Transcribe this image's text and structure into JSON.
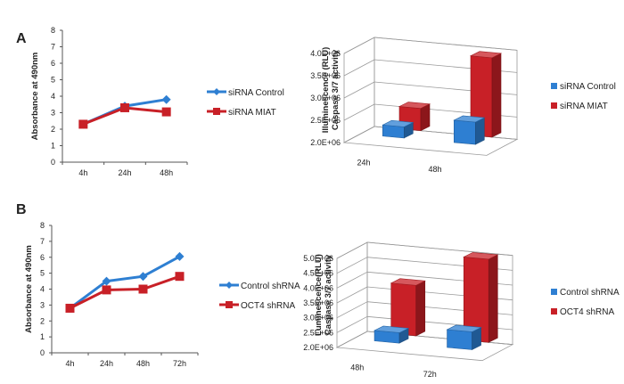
{
  "panels": {
    "a": "A",
    "b": "B"
  },
  "colors": {
    "blue": "#2e7fd2",
    "red": "#c82027"
  },
  "chart_data": [
    {
      "type": "line",
      "title": "",
      "xlabel": "",
      "ylabel": "Absorbance at 490nm",
      "categories": [
        "4h",
        "24h",
        "48h"
      ],
      "yticks": [
        "0",
        "1",
        "2",
        "3",
        "4",
        "5",
        "6",
        "7",
        "8"
      ],
      "ylim": [
        0,
        8
      ],
      "grid": false,
      "legend": "right",
      "series": [
        {
          "name": "siRNA Control",
          "values": [
            2.3,
            3.4,
            3.8
          ],
          "marker": "diamond"
        },
        {
          "name": "siRNA MIAT",
          "values": [
            2.3,
            3.3,
            3.05
          ],
          "marker": "square"
        }
      ]
    },
    {
      "type": "bar",
      "title": "",
      "xlabel": "",
      "ylabel": "Illuminescence (RLU)",
      "ylabel2": "Caspase 3/7 activity",
      "categories": [
        "24h",
        "48h"
      ],
      "yticks": [
        "2.0E+06",
        "2.5E+06",
        "3.0E+06",
        "3.5E+06",
        "4.0E+06"
      ],
      "ylim": [
        2000000,
        4000000
      ],
      "grid": true,
      "legend": "right",
      "series": [
        {
          "name": "siRNA Control",
          "values": [
            2250000,
            2500000
          ]
        },
        {
          "name": "siRNA MIAT",
          "values": [
            2500000,
            3780000
          ]
        }
      ]
    },
    {
      "type": "line",
      "title": "",
      "xlabel": "",
      "ylabel": "Absorbance at 490nm",
      "categories": [
        "4h",
        "24h",
        "48h",
        "72h"
      ],
      "yticks": [
        "0",
        "1",
        "2",
        "3",
        "4",
        "5",
        "6",
        "7",
        "8"
      ],
      "ylim": [
        0,
        8
      ],
      "grid": false,
      "legend": "right",
      "series": [
        {
          "name": "Control shRNA",
          "values": [
            2.8,
            4.5,
            4.8,
            6.05
          ],
          "marker": "diamond"
        },
        {
          "name": "OCT4 shRNA",
          "values": [
            2.8,
            3.95,
            4.0,
            4.8
          ],
          "marker": "square"
        }
      ]
    },
    {
      "type": "bar",
      "title": "",
      "xlabel": "",
      "ylabel": "Luminescence(RLU)",
      "ylabel2": "Caspase 3/7 activity",
      "categories": [
        "48h",
        "72h"
      ],
      "yticks": [
        "2.0E+06",
        "2.5E+06",
        "3.0E+06",
        "3.5E+06",
        "4.0E+06",
        "4.5E+06",
        "5.0E+06"
      ],
      "ylim": [
        2000000,
        5000000
      ],
      "grid": true,
      "legend": "right",
      "series": [
        {
          "name": "Control shRNA",
          "values": [
            2350000,
            2600000
          ]
        },
        {
          "name": "OCT4 shRNA",
          "values": [
            3700000,
            4800000
          ]
        }
      ]
    }
  ]
}
